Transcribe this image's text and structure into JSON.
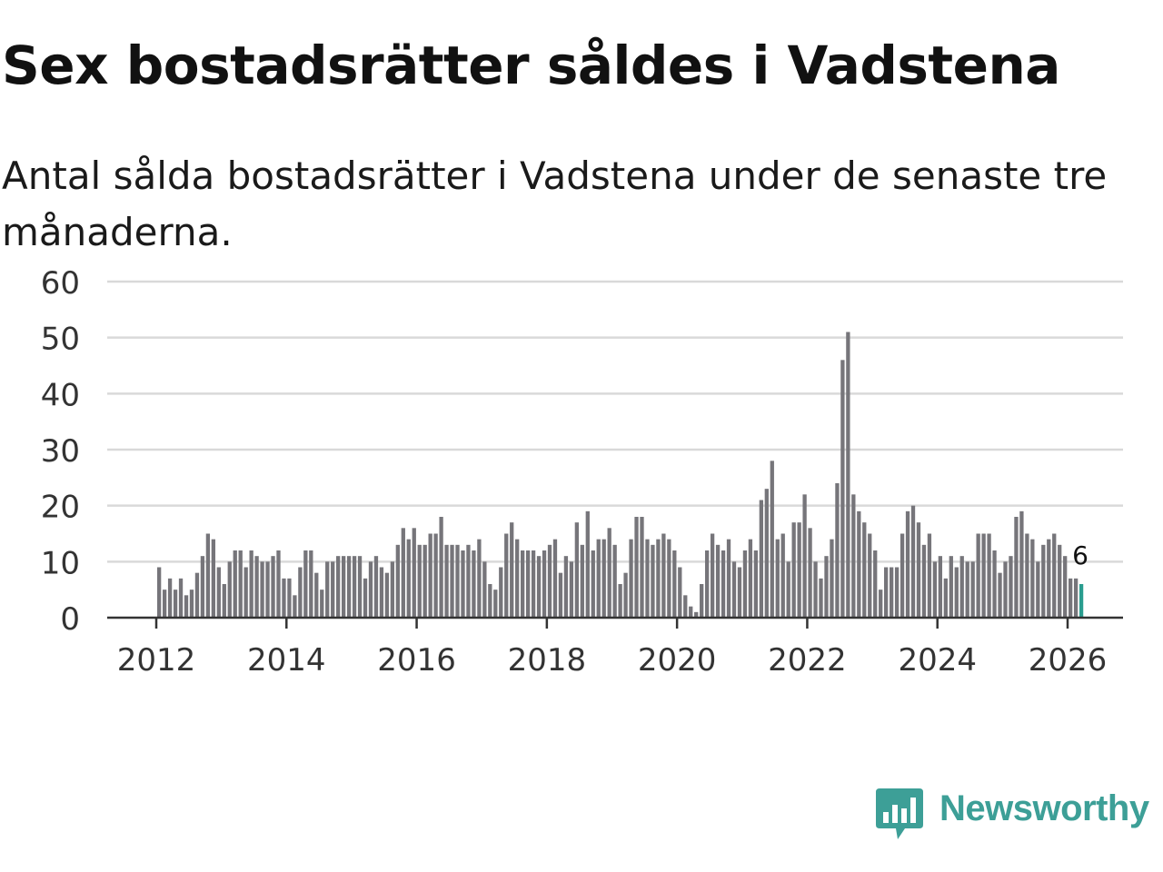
{
  "title": "Sex bostadsrätter såldes i Vadstena",
  "subtitle": "Antal sålda bostadsrätter i Vadstena under de senaste tre månaderna.",
  "brand": {
    "name": "Newsworthy",
    "color": "#3d9f97",
    "logo_icon": "newsworthy-logo-icon"
  },
  "colors": {
    "bar": "#76757a",
    "highlight": "#2a9d8f",
    "grid": "#d9d9d9",
    "axis": "#333333",
    "tick_text": "#333333"
  },
  "chart_data": {
    "type": "bar",
    "title": "Sex bostadsrätter såldes i Vadstena",
    "xlabel": "",
    "ylabel": "",
    "ylim": [
      0,
      60
    ],
    "yticks": [
      0,
      10,
      20,
      30,
      40,
      50,
      60
    ],
    "xticks": [
      "2012",
      "2014",
      "2016",
      "2018",
      "2020",
      "2022",
      "2024",
      "2026"
    ],
    "start": "2012-01",
    "frequency": "monthly",
    "values": [
      9,
      5,
      7,
      5,
      7,
      4,
      5,
      8,
      11,
      15,
      14,
      9,
      6,
      10,
      12,
      12,
      9,
      12,
      11,
      10,
      10,
      11,
      12,
      7,
      7,
      4,
      9,
      12,
      12,
      8,
      5,
      10,
      10,
      11,
      11,
      11,
      11,
      11,
      7,
      10,
      11,
      9,
      8,
      10,
      13,
      16,
      14,
      16,
      13,
      13,
      15,
      15,
      18,
      13,
      13,
      13,
      12,
      13,
      12,
      14,
      10,
      6,
      5,
      9,
      15,
      17,
      14,
      12,
      12,
      12,
      11,
      12,
      13,
      14,
      8,
      11,
      10,
      17,
      13,
      19,
      12,
      14,
      14,
      16,
      13,
      6,
      8,
      14,
      18,
      18,
      14,
      13,
      14,
      15,
      14,
      12,
      9,
      4,
      2,
      1,
      6,
      12,
      15,
      13,
      12,
      14,
      10,
      9,
      12,
      14,
      12,
      21,
      23,
      28,
      14,
      15,
      10,
      17,
      17,
      22,
      16,
      10,
      7,
      11,
      14,
      24,
      46,
      51,
      22,
      19,
      17,
      15,
      12,
      5,
      9,
      9,
      9,
      15,
      19,
      20,
      17,
      13,
      15,
      10,
      11,
      7,
      11,
      9,
      11,
      10,
      10,
      15,
      15,
      15,
      12,
      8,
      10,
      11,
      18,
      19,
      15,
      14,
      10,
      13,
      14,
      15,
      13,
      11,
      7,
      7,
      6
    ],
    "highlight_index": 170,
    "annotations": [
      {
        "index": 170,
        "label": "6"
      }
    ]
  }
}
